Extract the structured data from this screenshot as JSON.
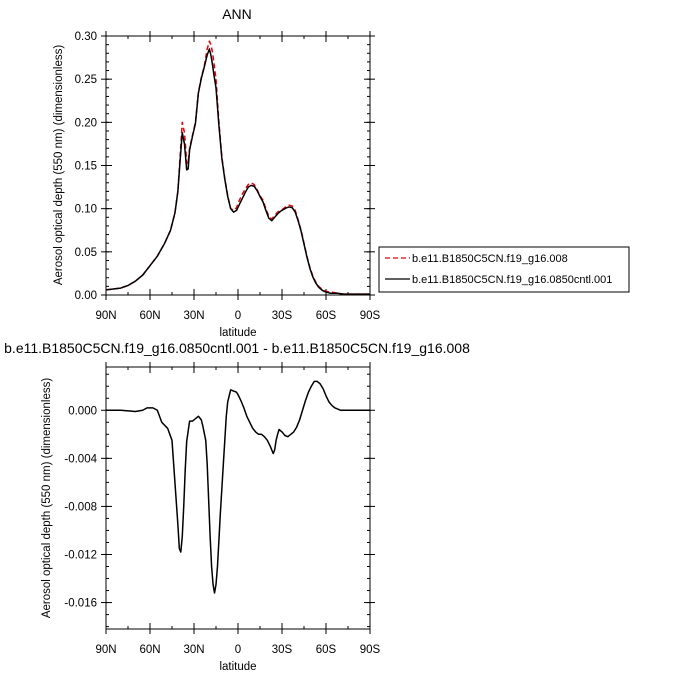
{
  "chart_data": [
    {
      "type": "line",
      "title": "ANN",
      "xlabel": "latitude",
      "ylabel": "Aerosol optical depth (550 nm) (dimensionless)",
      "xlim": [
        90,
        -90
      ],
      "ylim": [
        0,
        0.3
      ],
      "xticks": [
        {
          "value": 90,
          "label": "90N"
        },
        {
          "value": 60,
          "label": "60N"
        },
        {
          "value": 30,
          "label": "30N"
        },
        {
          "value": 0,
          "label": "0"
        },
        {
          "value": -30,
          "label": "30S"
        },
        {
          "value": -60,
          "label": "60S"
        },
        {
          "value": -90,
          "label": "90S"
        }
      ],
      "yticks": [
        "0.00",
        "0.05",
        "0.10",
        "0.15",
        "0.20",
        "0.25",
        "0.30"
      ],
      "legend_position": "right",
      "series": [
        {
          "name": "b.e11.B1850C5CN.f19_g16.008",
          "color": "#e8000b",
          "dash": "dashed",
          "x": [
            90,
            85,
            80,
            75,
            70,
            65,
            60,
            55,
            50,
            46,
            43,
            41,
            39.5,
            38,
            36.5,
            35,
            34,
            33,
            31,
            29,
            27,
            25,
            23,
            21,
            19.5,
            18.5,
            17.5,
            16.5,
            15,
            13,
            11,
            9,
            7,
            5,
            3,
            1,
            -1,
            -3,
            -5,
            -7,
            -9,
            -11,
            -13,
            -15,
            -17,
            -19,
            -21,
            -23,
            -25,
            -27,
            -29,
            -31,
            -33,
            -35,
            -37,
            -39,
            -41,
            -43,
            -45,
            -47,
            -49,
            -51,
            -53,
            -55,
            -57,
            -59,
            -61,
            -63,
            -65,
            -68,
            -72,
            -76,
            -80,
            -85,
            -90
          ],
          "y": [
            0.006,
            0.007,
            0.008,
            0.011,
            0.016,
            0.023,
            0.034,
            0.045,
            0.06,
            0.075,
            0.095,
            0.12,
            0.16,
            0.2,
            0.188,
            0.155,
            0.152,
            0.17,
            0.185,
            0.2,
            0.235,
            0.252,
            0.265,
            0.285,
            0.294,
            0.29,
            0.282,
            0.27,
            0.25,
            0.2,
            0.16,
            0.135,
            0.115,
            0.1,
            0.098,
            0.101,
            0.11,
            0.117,
            0.123,
            0.128,
            0.13,
            0.128,
            0.122,
            0.115,
            0.11,
            0.1,
            0.091,
            0.088,
            0.092,
            0.096,
            0.098,
            0.1,
            0.103,
            0.104,
            0.103,
            0.098,
            0.087,
            0.075,
            0.06,
            0.045,
            0.032,
            0.022,
            0.015,
            0.01,
            0.007,
            0.005,
            0.004,
            0.003,
            0.003,
            0.002,
            0.001,
            0.001,
            0.001,
            0.001,
            0.001
          ]
        },
        {
          "name": "b.e11.B1850C5CN.f19_g16.0850cntl.001",
          "color": "#000000",
          "dash": "solid",
          "x": [
            90,
            85,
            80,
            75,
            70,
            65,
            60,
            55,
            50,
            46,
            43,
            41,
            39.5,
            38,
            36.5,
            35,
            34,
            33,
            31,
            29,
            27,
            25,
            23,
            21,
            19.5,
            18.5,
            17.5,
            16.5,
            15,
            13,
            11,
            9,
            7,
            5,
            3,
            1,
            -1,
            -3,
            -5,
            -7,
            -9,
            -11,
            -13,
            -15,
            -17,
            -19,
            -21,
            -23,
            -25,
            -27,
            -29,
            -31,
            -33,
            -35,
            -37,
            -39,
            -41,
            -43,
            -45,
            -47,
            -49,
            -51,
            -53,
            -55,
            -57,
            -59,
            -61,
            -63,
            -65,
            -68,
            -72,
            -76,
            -80,
            -85,
            -90
          ],
          "y": [
            0.006,
            0.007,
            0.008,
            0.011,
            0.016,
            0.023,
            0.034,
            0.045,
            0.06,
            0.075,
            0.095,
            0.12,
            0.155,
            0.188,
            0.175,
            0.145,
            0.146,
            0.168,
            0.184,
            0.199,
            0.234,
            0.251,
            0.264,
            0.278,
            0.285,
            0.278,
            0.268,
            0.256,
            0.24,
            0.196,
            0.158,
            0.134,
            0.114,
            0.1,
            0.096,
            0.098,
            0.105,
            0.112,
            0.119,
            0.125,
            0.127,
            0.126,
            0.121,
            0.114,
            0.108,
            0.098,
            0.089,
            0.086,
            0.09,
            0.094,
            0.097,
            0.099,
            0.101,
            0.102,
            0.101,
            0.096,
            0.086,
            0.074,
            0.059,
            0.044,
            0.031,
            0.021,
            0.014,
            0.009,
            0.006,
            0.004,
            0.003,
            0.002,
            0.002,
            0.002,
            0.001,
            0.001,
            0.001,
            0.001,
            0.001
          ]
        }
      ]
    },
    {
      "type": "line",
      "title": "b.e11.B1850C5CN.f19_g16.0850cntl.001 - b.e11.B1850C5CN.f19_g16.008",
      "xlabel": "latitude",
      "ylabel": "Aerosol optical depth (550 nm) (dimensionless)",
      "xlim": [
        90,
        -90
      ],
      "ylim": [
        -0.0182,
        0.0036
      ],
      "xticks": [
        {
          "value": 90,
          "label": "90N"
        },
        {
          "value": 60,
          "label": "60N"
        },
        {
          "value": 30,
          "label": "30N"
        },
        {
          "value": 0,
          "label": "0"
        },
        {
          "value": -30,
          "label": "30S"
        },
        {
          "value": -60,
          "label": "60S"
        },
        {
          "value": -90,
          "label": "90S"
        }
      ],
      "yticks": [
        "0.000",
        "-0.004",
        "-0.008",
        "-0.012",
        "-0.016"
      ],
      "series": [
        {
          "name": "",
          "color": "#000000",
          "dash": "solid",
          "x": [
            90,
            80,
            70,
            65,
            62,
            58,
            55,
            52,
            48,
            45,
            43,
            41,
            40,
            39,
            38,
            37,
            36,
            35,
            33,
            31,
            29,
            27,
            25,
            24,
            22,
            21,
            20,
            19,
            18,
            17,
            16,
            15,
            14,
            13,
            12,
            11,
            10,
            9,
            8,
            7,
            5,
            3,
            1,
            0,
            -2,
            -4,
            -6,
            -8,
            -10,
            -12,
            -14,
            -16,
            -18,
            -20,
            -22,
            -24,
            -25,
            -26,
            -27,
            -28,
            -30,
            -32,
            -34,
            -36,
            -38,
            -40,
            -42,
            -44,
            -46,
            -48,
            -50,
            -52,
            -54,
            -56,
            -58,
            -60,
            -62,
            -64,
            -66,
            -68,
            -70,
            -75,
            -80,
            -85,
            -90
          ],
          "y": [
            0.0,
            0.0,
            -0.0001,
            0.0,
            0.0002,
            0.0002,
            0.0,
            -0.001,
            -0.0015,
            -0.0025,
            -0.006,
            -0.0095,
            -0.0115,
            -0.0118,
            -0.0105,
            -0.008,
            -0.005,
            -0.0026,
            -0.0009,
            -0.0009,
            -0.0007,
            -0.0005,
            -0.0008,
            -0.0013,
            -0.0025,
            -0.0045,
            -0.0075,
            -0.0105,
            -0.013,
            -0.0145,
            -0.0152,
            -0.0145,
            -0.013,
            -0.0108,
            -0.0085,
            -0.0065,
            -0.0045,
            -0.0025,
            -0.0005,
            0.0007,
            0.0017,
            0.0016,
            0.0015,
            0.0013,
            0.0008,
            0.0002,
            -0.0005,
            -0.001,
            -0.0015,
            -0.0018,
            -0.002,
            -0.002,
            -0.0022,
            -0.0025,
            -0.003,
            -0.0036,
            -0.0033,
            -0.0025,
            -0.002,
            -0.0016,
            -0.0018,
            -0.0021,
            -0.0022,
            -0.002,
            -0.0018,
            -0.0014,
            -0.0008,
            0.0,
            0.0008,
            0.0015,
            0.002,
            0.0024,
            0.0024,
            0.0022,
            0.0018,
            0.0012,
            0.0007,
            0.0004,
            0.0002,
            0.0001,
            0.0,
            0.0,
            0.0,
            0.0,
            0.0
          ]
        }
      ]
    }
  ]
}
